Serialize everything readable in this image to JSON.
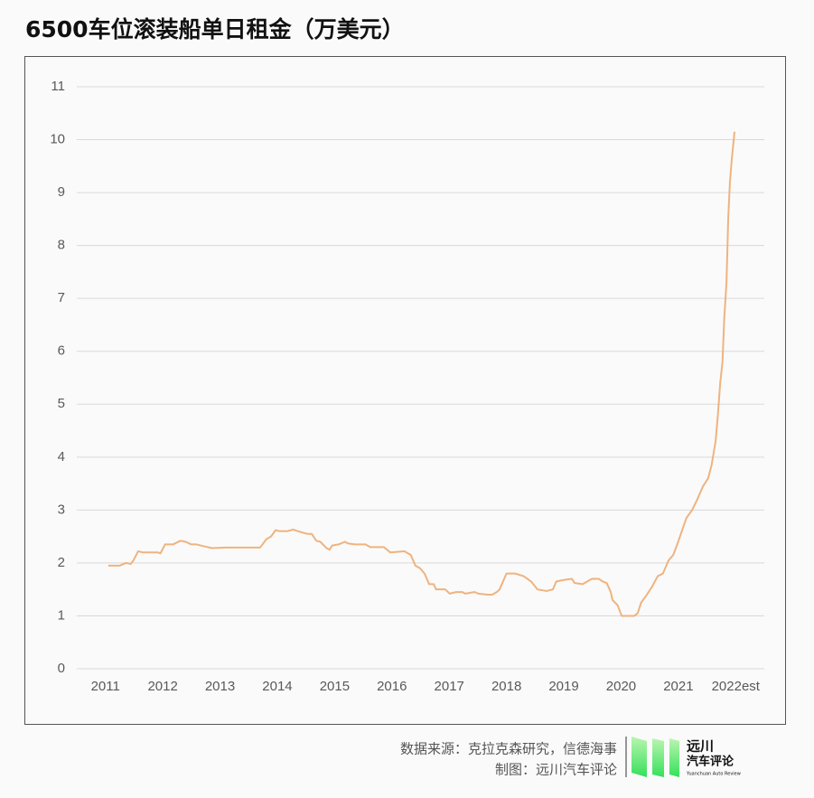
{
  "chart_data": {
    "type": "line",
    "title": "6500车位滚装船单日租金（万美元）",
    "x": [
      2011.05,
      2011.25,
      2011.36,
      2011.44,
      2011.49,
      2011.57,
      2011.65,
      2011.91,
      2011.96,
      2012.04,
      2012.18,
      2012.31,
      2012.4,
      2012.5,
      2012.59,
      2012.7,
      2012.86,
      2013.1,
      2013.7,
      2013.81,
      2013.89,
      2013.97,
      2014.04,
      2014.17,
      2014.28,
      2014.36,
      2014.52,
      2014.6,
      2014.68,
      2014.75,
      2014.86,
      2014.91,
      2014.96,
      2015.07,
      2015.18,
      2015.23,
      2015.35,
      2015.54,
      2015.62,
      2015.86,
      2015.97,
      2016.22,
      2016.33,
      2016.41,
      2016.49,
      2016.57,
      2016.65,
      2016.73,
      2016.77,
      2016.93,
      2017.01,
      2017.12,
      2017.23,
      2017.28,
      2017.44,
      2017.51,
      2017.67,
      2017.75,
      2017.83,
      2017.88,
      2017.94,
      2018.0,
      2018.15,
      2018.3,
      2018.43,
      2018.54,
      2018.7,
      2018.81,
      2018.87,
      2019.01,
      2019.14,
      2019.19,
      2019.33,
      2019.41,
      2019.49,
      2019.61,
      2019.68,
      2019.75,
      2019.82,
      2019.85,
      2019.94,
      2020.01,
      2020.12,
      2020.23,
      2020.29,
      2020.35,
      2020.45,
      2020.54,
      2020.64,
      2020.73,
      2020.83,
      2020.91,
      2020.98,
      2021.06,
      2021.14,
      2021.24,
      2021.33,
      2021.43,
      2021.52,
      2021.58,
      2021.65,
      2021.69,
      2021.73,
      2021.77,
      2021.8,
      2021.84,
      2021.87,
      2021.9,
      2021.93,
      2021.98
    ],
    "values": [
      1.95,
      1.95,
      2.0,
      1.98,
      2.05,
      2.22,
      2.2,
      2.2,
      2.18,
      2.35,
      2.35,
      2.42,
      2.4,
      2.35,
      2.35,
      2.32,
      2.28,
      2.29,
      2.29,
      2.45,
      2.5,
      2.62,
      2.6,
      2.6,
      2.63,
      2.6,
      2.55,
      2.55,
      2.42,
      2.4,
      2.28,
      2.25,
      2.33,
      2.35,
      2.4,
      2.37,
      2.35,
      2.35,
      2.3,
      2.3,
      2.2,
      2.22,
      2.15,
      1.95,
      1.9,
      1.8,
      1.6,
      1.6,
      1.5,
      1.5,
      1.42,
      1.45,
      1.45,
      1.42,
      1.45,
      1.42,
      1.4,
      1.4,
      1.45,
      1.5,
      1.65,
      1.8,
      1.8,
      1.75,
      1.65,
      1.5,
      1.47,
      1.5,
      1.65,
      1.68,
      1.7,
      1.62,
      1.6,
      1.65,
      1.7,
      1.7,
      1.65,
      1.62,
      1.45,
      1.3,
      1.2,
      1.0,
      1.0,
      1.0,
      1.05,
      1.25,
      1.4,
      1.55,
      1.75,
      1.8,
      2.05,
      2.15,
      2.35,
      2.6,
      2.85,
      3.0,
      3.2,
      3.45,
      3.6,
      3.85,
      4.3,
      4.8,
      5.4,
      5.8,
      6.6,
      7.3,
      8.5,
      9.2,
      9.6,
      10.15
    ],
    "color": "#efb37f",
    "xlim": [
      2010.5,
      2022.5
    ],
    "xticks": [
      2011,
      2012,
      2013,
      2014,
      2015,
      2016,
      2017,
      2018,
      2019,
      2020,
      2021,
      {
        "value": 2022,
        "label": "2022est"
      }
    ],
    "ylim": [
      0,
      11
    ],
    "yticks": [
      0,
      1,
      2,
      3,
      4,
      5,
      6,
      7,
      8,
      9,
      10,
      11
    ],
    "grid": true
  },
  "footer": {
    "source": "数据来源：克拉克森研究，信德海事",
    "credit": "制图：远川汽车评论",
    "logo": [
      "远川",
      "汽车评论",
      "Yuanchuan Auto Review"
    ]
  }
}
